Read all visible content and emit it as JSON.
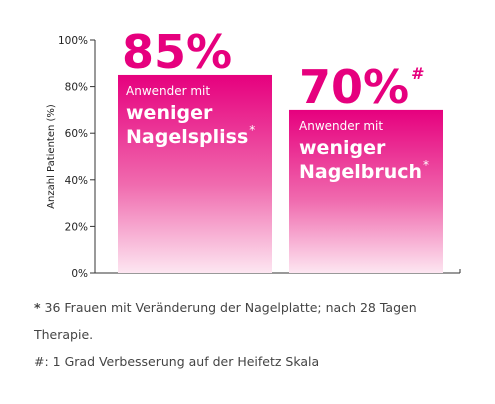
{
  "chart_data": {
    "type": "bar",
    "ylabel": "Anzahl Patienten (%)",
    "ylim": [
      0,
      100
    ],
    "yticks": [
      {
        "value": 0,
        "label": "0%"
      },
      {
        "value": 20,
        "label": "20%"
      },
      {
        "value": 40,
        "label": "40%"
      },
      {
        "value": 60,
        "label": "60%"
      },
      {
        "value": 80,
        "label": "80%"
      },
      {
        "value": 100,
        "label": "100%"
      }
    ],
    "bars": [
      {
        "value": 85,
        "value_label": "85%",
        "value_mark": "",
        "label_small": "Anwender mit",
        "label_big_1": "weniger",
        "label_big_2": "Nagelspliss",
        "label_mark": "*"
      },
      {
        "value": 70,
        "value_label": "70%",
        "value_mark": "#",
        "label_small": "Anwender mit",
        "label_big_1": "weniger",
        "label_big_2": "Nagelbruch",
        "label_mark": "*"
      }
    ],
    "colors": {
      "bar_top": "#e6007e",
      "bar_bottom": "#fde6f1",
      "value_label": "#e6007e",
      "axis": "#333333"
    }
  },
  "footnotes": {
    "note1_mark": "*",
    "note1_text": " 36 Frauen mit Veränderung der Nagelplatte; nach 28 Tagen Therapie.",
    "note2_text": "#: 1 Grad Verbesserung auf der Heifetz Skala"
  }
}
